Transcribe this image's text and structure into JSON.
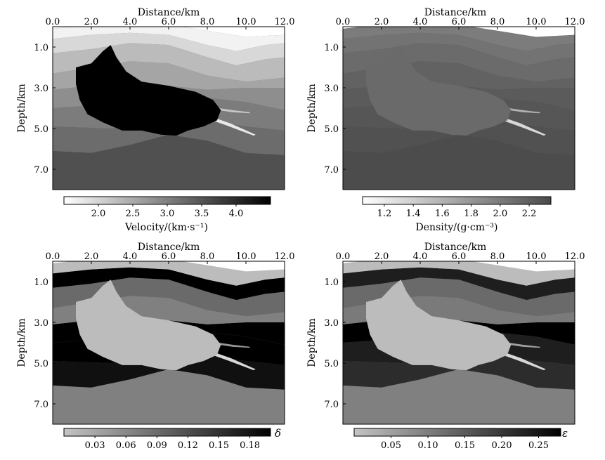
{
  "figure": {
    "panels": [
      {
        "id": "velocity",
        "xlabel": "Distance/km",
        "ylabel": "Depth/km",
        "xticks": [
          "0.0",
          "2.0",
          "4.0",
          "6.0",
          "8.0",
          "10.0",
          "12.0"
        ],
        "yticks": [
          "1.0",
          "3.0",
          "5.0",
          "7.0"
        ],
        "colorbar_label": "Velocity/(km·s⁻¹)",
        "colorbar_ticks": [
          "2.0",
          "2.5",
          "3.0",
          "3.5",
          "4.0"
        ]
      },
      {
        "id": "density",
        "xlabel": "Distance/km",
        "ylabel": "Depth/km",
        "xticks": [
          "0.0",
          "2.0",
          "4.0",
          "6.0",
          "8.0",
          "10.0",
          "12.0"
        ],
        "yticks": [
          "1.0",
          "3.0",
          "5.0",
          "7.0"
        ],
        "colorbar_label": "Density/(g·cm⁻³)",
        "colorbar_ticks": [
          "1.2",
          "1.4",
          "1.6",
          "1.8",
          "2.0",
          "2.2"
        ]
      },
      {
        "id": "delta",
        "xlabel": "Distance/km",
        "ylabel": "Depth/km",
        "xticks": [
          "0.0",
          "2.0",
          "4.0",
          "6.0",
          "8.0",
          "10.0",
          "12.0"
        ],
        "yticks": [
          "1.0",
          "3.0",
          "5.0",
          "7.0"
        ],
        "colorbar_label": "δ",
        "colorbar_ticks": [
          "0.03",
          "0.06",
          "0.09",
          "0.12",
          "0.15",
          "0.18"
        ]
      },
      {
        "id": "epsilon",
        "xlabel": "Distance/km",
        "ylabel": "Depth/km",
        "xticks": [
          "0.0",
          "2.0",
          "4.0",
          "6.0",
          "8.0",
          "10.0",
          "12.0"
        ],
        "yticks": [
          "1.0",
          "3.0",
          "5.0",
          "7.0"
        ],
        "colorbar_label": "ε",
        "colorbar_ticks": [
          "0.05",
          "0.10",
          "0.15",
          "0.20",
          "0.25"
        ]
      }
    ]
  },
  "chart_data": [
    {
      "type": "heatmap",
      "title": "",
      "xlabel": "Distance/km",
      "ylabel": "Depth/km",
      "xlim": [
        0,
        12
      ],
      "ylim": [
        0,
        8
      ],
      "colorbar": {
        "label": "Velocity/(km·s⁻¹)",
        "ticks": [
          2.0,
          2.5,
          3.0,
          3.5,
          4.0
        ],
        "range": [
          1.5,
          4.5
        ],
        "colormap": "white-to-black"
      },
      "layers": [
        {
          "name": "layer-1",
          "value": 1.5,
          "color": "#f2f2f2"
        },
        {
          "name": "layer-2",
          "value": 2.2,
          "color": "#d8d8d8"
        },
        {
          "name": "layer-3",
          "value": 2.6,
          "color": "#bbbbbb"
        },
        {
          "name": "layer-4",
          "value": 3.0,
          "color": "#a5a5a5"
        },
        {
          "name": "layer-5",
          "value": 3.3,
          "color": "#8e8e8e"
        },
        {
          "name": "layer-6",
          "value": 3.5,
          "color": "#7c7c7c"
        },
        {
          "name": "layer-7",
          "value": 3.7,
          "color": "#6c6c6c"
        },
        {
          "name": "basement",
          "value": 4.0,
          "color": "#505050"
        }
      ],
      "salt_body": {
        "value": 4.5,
        "color": "#000000"
      },
      "thin_layer": {
        "value": 1.6,
        "color": "#e8e8e8"
      }
    },
    {
      "type": "heatmap",
      "title": "",
      "xlabel": "Distance/km",
      "ylabel": "Depth/km",
      "xlim": [
        0,
        12
      ],
      "ylim": [
        0,
        8
      ],
      "colorbar": {
        "label": "Density/(g·cm⁻³)",
        "ticks": [
          1.2,
          1.4,
          1.6,
          1.8,
          2.0,
          2.2
        ],
        "range": [
          1.05,
          2.35
        ],
        "colormap": "white-to-darkgray"
      },
      "layers": [
        {
          "name": "layer-1",
          "value": 2.0,
          "color": "#7c7c7c"
        },
        {
          "name": "layer-2",
          "value": 2.05,
          "color": "#737373"
        },
        {
          "name": "layer-3",
          "value": 2.1,
          "color": "#6b6b6b"
        },
        {
          "name": "layer-4",
          "value": 2.15,
          "color": "#626262"
        },
        {
          "name": "layer-5",
          "value": 2.2,
          "color": "#5b5b5b"
        },
        {
          "name": "layer-6",
          "value": 2.22,
          "color": "#565656"
        },
        {
          "name": "layer-7",
          "value": 2.25,
          "color": "#515151"
        },
        {
          "name": "basement",
          "value": 2.3,
          "color": "#4c4c4c"
        }
      ],
      "salt_body": {
        "value": 2.1,
        "color": "#6a6a6a"
      },
      "thin_layer": {
        "value": 1.2,
        "color": "#d8d8d8"
      }
    },
    {
      "type": "heatmap",
      "title": "",
      "xlabel": "Distance/km",
      "ylabel": "Depth/km",
      "xlim": [
        0,
        12
      ],
      "ylim": [
        0,
        8
      ],
      "colorbar": {
        "label": "δ",
        "ticks": [
          0.03,
          0.06,
          0.09,
          0.12,
          0.15,
          0.18
        ],
        "range": [
          0.0,
          0.2
        ],
        "colormap": "lightgray-to-black"
      },
      "layers": [
        {
          "name": "layer-1",
          "value": 0.0,
          "color": "#bcbcbc"
        },
        {
          "name": "layer-2",
          "value": 0.2,
          "color": "#000000"
        },
        {
          "name": "layer-3",
          "value": 0.11,
          "color": "#6a6a6a"
        },
        {
          "name": "layer-4",
          "value": 0.09,
          "color": "#808080"
        },
        {
          "name": "layer-5",
          "value": 0.2,
          "color": "#000000"
        },
        {
          "name": "layer-6",
          "value": 0.2,
          "color": "#000000"
        },
        {
          "name": "layer-7",
          "value": 0.18,
          "color": "#101010"
        },
        {
          "name": "basement",
          "value": 0.09,
          "color": "#808080"
        }
      ],
      "salt_body": {
        "value": 0.0,
        "color": "#bcbcbc"
      },
      "thin_layer": {
        "value": 0.0,
        "color": "#d8d8d8"
      }
    },
    {
      "type": "heatmap",
      "title": "",
      "xlabel": "Distance/km",
      "ylabel": "Depth/km",
      "xlim": [
        0,
        12
      ],
      "ylim": [
        0,
        8
      ],
      "colorbar": {
        "label": "ε",
        "ticks": [
          0.05,
          0.1,
          0.15,
          0.2,
          0.25
        ],
        "range": [
          0.0,
          0.28
        ],
        "colormap": "lightgray-to-black"
      },
      "layers": [
        {
          "name": "layer-1",
          "value": 0.0,
          "color": "#bcbcbc"
        },
        {
          "name": "layer-2",
          "value": 0.25,
          "color": "#1e1e1e"
        },
        {
          "name": "layer-3",
          "value": 0.15,
          "color": "#6a6a6a"
        },
        {
          "name": "layer-4",
          "value": 0.13,
          "color": "#7a7a7a"
        },
        {
          "name": "layer-5",
          "value": 0.28,
          "color": "#000000"
        },
        {
          "name": "layer-6",
          "value": 0.25,
          "color": "#1e1e1e"
        },
        {
          "name": "layer-7",
          "value": 0.22,
          "color": "#2c2c2c"
        },
        {
          "name": "basement",
          "value": 0.12,
          "color": "#808080"
        }
      ],
      "salt_body": {
        "value": 0.0,
        "color": "#bcbcbc"
      },
      "thin_layer": {
        "value": 0.0,
        "color": "#d8d8d8"
      }
    }
  ]
}
